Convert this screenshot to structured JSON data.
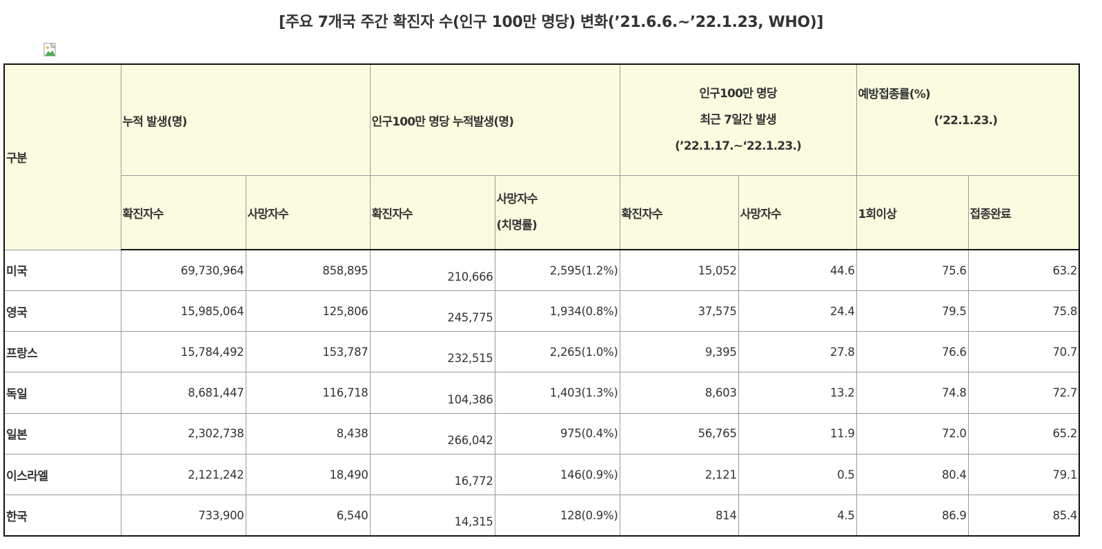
{
  "title": "[주요 7개국 주간 확진자 수(인구 100만 명당) 변화(’21.6.6.~’22.1.23, WHO)]",
  "header": {
    "category": "구분",
    "group1": "누적 발생(명)",
    "group2": "인구100만 명당 누적발생(명)",
    "group3_line1": "인구100만 명당",
    "group3_line2": "최근 7일간 발생",
    "group3_line3": "(’22.1.17.~‘22.1.23.)",
    "group4_line1": "예방접종률(%)",
    "group4_line2": "(’22.1.23.)",
    "sub": {
      "g1_cases": "확진자수",
      "g1_deaths": "사망자수",
      "g2_cases": "확진자수",
      "g2_deaths_line1": "사망자수",
      "g2_deaths_line2": "(치명률)",
      "g3_cases": "확진자수",
      "g3_deaths": "사망자수",
      "g4_first": "1회이상",
      "g4_full": "접종완료"
    }
  },
  "rows": [
    {
      "country": "미국",
      "cum_cases": "69,730,964",
      "cum_deaths": "858,895",
      "pm_cases": "210,666",
      "pm_deaths": "2,595(1.2%)",
      "wk_cases": "15,052",
      "wk_deaths": "44.6",
      "vac_first": "75.6",
      "vac_full": "63.2"
    },
    {
      "country": "영국",
      "cum_cases": "15,985,064",
      "cum_deaths": "125,806",
      "pm_cases": "245,775",
      "pm_deaths": "1,934(0.8%)",
      "wk_cases": "37,575",
      "wk_deaths": "24.4",
      "vac_first": "79.5",
      "vac_full": "75.8"
    },
    {
      "country": "프랑스",
      "cum_cases": "15,784,492",
      "cum_deaths": "153,787",
      "pm_cases": "232,515",
      "pm_deaths": "2,265(1.0%)",
      "wk_cases": "9,395",
      "wk_deaths": "27.8",
      "vac_first": "76.6",
      "vac_full": "70.7"
    },
    {
      "country": "독일",
      "cum_cases": "8,681,447",
      "cum_deaths": "116,718",
      "pm_cases": "104,386",
      "pm_deaths": "1,403(1.3%)",
      "wk_cases": "8,603",
      "wk_deaths": "13.2",
      "vac_first": "74.8",
      "vac_full": "72.7"
    },
    {
      "country": "일본",
      "cum_cases": "2,302,738",
      "cum_deaths": "8,438",
      "pm_cases": "266,042",
      "pm_deaths": "975(0.4%)",
      "wk_cases": "56,765",
      "wk_deaths": "11.9",
      "vac_first": "72.0",
      "vac_full": "65.2"
    },
    {
      "country": "이스라엘",
      "cum_cases": "2,121,242",
      "cum_deaths": "18,490",
      "pm_cases": "16,772",
      "pm_deaths": "146(0.9%)",
      "wk_cases": "2,121",
      "wk_deaths": "0.5",
      "vac_first": "80.4",
      "vac_full": "79.1"
    },
    {
      "country": "한국",
      "cum_cases": "733,900",
      "cum_deaths": "6,540",
      "pm_cases": "14,315",
      "pm_deaths": "128(0.9%)",
      "wk_cases": "814",
      "wk_deaths": "4.5",
      "vac_first": "86.9",
      "vac_full": "85.4"
    }
  ]
}
